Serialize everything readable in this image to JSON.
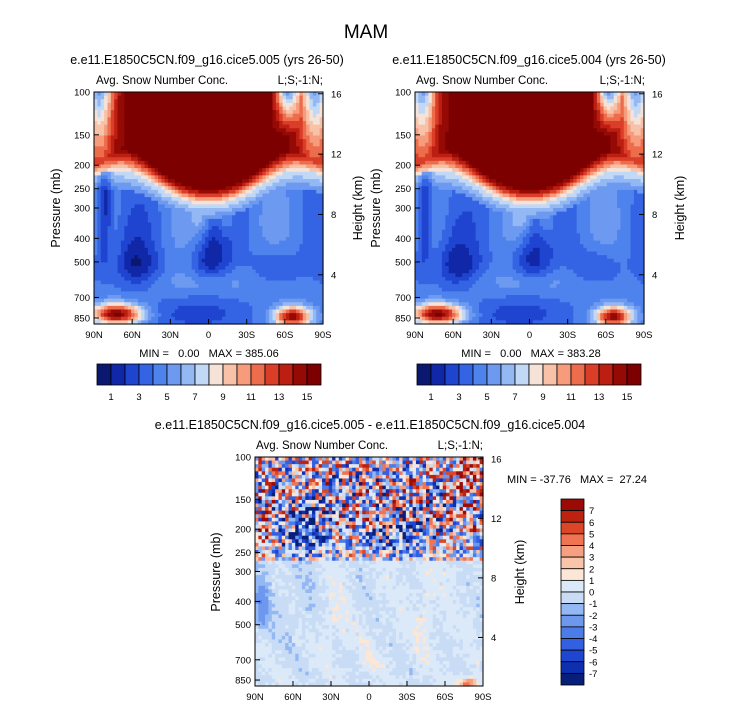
{
  "figure_title": "MAM",
  "colors": {
    "scale_a": [
      "#0a1870",
      "#1028a8",
      "#1e44d0",
      "#3464e4",
      "#4e82ec",
      "#6d9af0",
      "#93b8f4",
      "#c1d8f6",
      "#f6e3d8",
      "#f8c2a8",
      "#f69c7c",
      "#ec6c4c",
      "#da3e28",
      "#bc1e12",
      "#960a06",
      "#7c0000"
    ],
    "scale_b": [
      "#081f7a",
      "#0d2fb0",
      "#1f46d0",
      "#3360e0",
      "#4b7ce8",
      "#6d98ee",
      "#93b8f4",
      "#c8dcf6",
      "#dbe9f8",
      "#fce6d6",
      "#f9c5aa",
      "#f6a081",
      "#f07452",
      "#dc4628",
      "#bd2210",
      "#9c0a06"
    ]
  },
  "chart_data": [
    {
      "type": "heatmap",
      "id": "left",
      "title": "e.e11.E1850C5CN.f09_g16.cice5.005 (yrs 26-50)",
      "subtitle_left": "Avg. Snow Number Conc.",
      "subtitle_right": "L;S;-1:N;",
      "ylabel": "Pressure (mb)",
      "ylabel_right": "Height (km)",
      "x_ticks": [
        "90N",
        "60N",
        "30N",
        "0",
        "30S",
        "60S",
        "90S"
      ],
      "x_range": [
        90,
        -90
      ],
      "y_ticks": [
        100,
        150,
        200,
        250,
        300,
        400,
        500,
        700,
        850
      ],
      "y_range": [
        100,
        900
      ],
      "height_ticks": [
        16,
        12,
        8,
        4
      ],
      "stats_text": "MIN =   0.00   MAX = 385.06",
      "colorbar": {
        "labels": [
          "1",
          "3",
          "5",
          "7",
          "9",
          "11",
          "13",
          "15"
        ],
        "n_bins": 16,
        "orientation": "horizontal",
        "scale": "a"
      },
      "variant": 0
    },
    {
      "type": "heatmap",
      "id": "right",
      "title": "e.e11.E1850C5CN.f09_g16.cice5.004 (yrs 26-50)",
      "subtitle_left": "Avg. Snow Number Conc.",
      "subtitle_right": "L;S;-1:N;",
      "ylabel": "Pressure (mb)",
      "ylabel_right": "Height (km)",
      "x_ticks": [
        "90N",
        "60N",
        "30N",
        "0",
        "30S",
        "60S",
        "90S"
      ],
      "x_range": [
        90,
        -90
      ],
      "y_ticks": [
        100,
        150,
        200,
        250,
        300,
        400,
        500,
        700,
        850
      ],
      "y_range": [
        100,
        900
      ],
      "height_ticks": [
        16,
        12,
        8,
        4
      ],
      "stats_text": "MIN =   0.00   MAX = 383.28",
      "colorbar": {
        "labels": [
          "1",
          "3",
          "5",
          "7",
          "9",
          "11",
          "13",
          "15"
        ],
        "n_bins": 16,
        "orientation": "horizontal",
        "scale": "a"
      },
      "variant": 1
    },
    {
      "type": "heatmap",
      "id": "diff",
      "title": "e.e11.E1850C5CN.f09_g16.cice5.005 - e.e11.E1850C5CN.f09_g16.cice5.004",
      "subtitle_left": "Avg. Snow Number Conc.",
      "subtitle_right": "L;S;-1:N;",
      "ylabel": "Pressure (mb)",
      "ylabel_right": "Height (km)",
      "x_ticks": [
        "90N",
        "60N",
        "30N",
        "0",
        "30S",
        "60S",
        "90S"
      ],
      "x_range": [
        90,
        -90
      ],
      "y_ticks": [
        100,
        150,
        200,
        250,
        300,
        400,
        500,
        700,
        850
      ],
      "y_range": [
        100,
        900
      ],
      "height_ticks": [
        16,
        12,
        8,
        4
      ],
      "stats_text": "MIN = -37.76   MAX =  27.24",
      "colorbar": {
        "labels": [
          "7",
          "6",
          "5",
          "4",
          "3",
          "2",
          "1",
          "0",
          "-1",
          "-2",
          "-3",
          "-4",
          "-5",
          "-6",
          "-7"
        ],
        "n_bins": 16,
        "orientation": "vertical",
        "scale": "b"
      },
      "variant": 2
    }
  ]
}
